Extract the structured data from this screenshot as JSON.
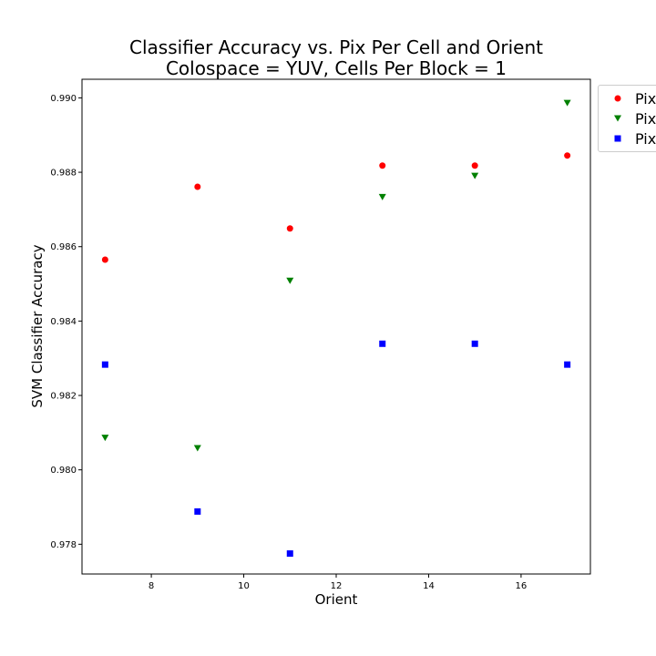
{
  "chart_data": {
    "type": "scatter",
    "title": "Classifier Accuracy vs. Pix Per Cell and Orient",
    "subtitle": "Colospace = YUV, Cells Per Block = 1",
    "xlabel": "Orient",
    "ylabel": "SVM Classifier Accuracy",
    "xlim": [
      6.5,
      17.5
    ],
    "ylim": [
      0.9772,
      0.9905
    ],
    "xticks": [
      "8",
      "10",
      "12",
      "14",
      "16"
    ],
    "yticks": [
      "0.978",
      "0.980",
      "0.982",
      "0.984",
      "0.986",
      "0.988",
      "0.990"
    ],
    "grid": false,
    "legend_position": "outside-top-right",
    "series": [
      {
        "name": "Pix",
        "marker": "circle",
        "color": "#ff0000",
        "x": [
          7,
          9,
          11,
          13,
          15,
          17
        ],
        "y": [
          0.98565,
          0.98761,
          0.98649,
          0.98818,
          0.98818,
          0.98845
        ]
      },
      {
        "name": "Pix",
        "marker": "triangle-down",
        "color": "#008000",
        "x": [
          7,
          9,
          11,
          13,
          15,
          17
        ],
        "y": [
          0.98086,
          0.98058,
          0.98508,
          0.98733,
          0.9879,
          0.98986
        ]
      },
      {
        "name": "Pix",
        "marker": "square",
        "color": "#0000ff",
        "x": [
          7,
          9,
          11,
          13,
          15,
          17
        ],
        "y": [
          0.98283,
          0.97888,
          0.97775,
          0.98339,
          0.98339,
          0.98283
        ]
      }
    ]
  }
}
